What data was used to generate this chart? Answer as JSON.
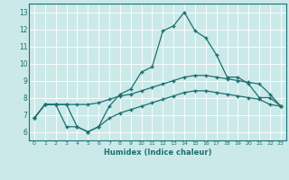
{
  "title": "",
  "xlabel": "Humidex (Indice chaleur)",
  "ylabel": "",
  "bg_color": "#cce9e9",
  "grid_color": "#ffffff",
  "line_color": "#1a7070",
  "xlim": [
    -0.5,
    23.5
  ],
  "ylim": [
    5.5,
    13.5
  ],
  "xticks": [
    0,
    1,
    2,
    3,
    4,
    5,
    6,
    7,
    8,
    9,
    10,
    11,
    12,
    13,
    14,
    15,
    16,
    17,
    18,
    19,
    20,
    21,
    22,
    23
  ],
  "yticks": [
    6,
    7,
    8,
    9,
    10,
    11,
    12,
    13
  ],
  "line1_x": [
    0,
    1,
    2,
    3,
    4,
    5,
    6,
    7,
    8,
    9,
    10,
    11,
    12,
    13,
    14,
    15,
    16,
    17,
    18,
    19,
    20,
    21,
    22,
    23
  ],
  "line1_y": [
    6.8,
    7.6,
    7.6,
    7.6,
    7.6,
    7.6,
    7.7,
    7.9,
    8.1,
    8.2,
    8.4,
    8.6,
    8.8,
    9.0,
    9.2,
    9.3,
    9.3,
    9.2,
    9.1,
    9.0,
    8.9,
    8.8,
    8.2,
    7.5
  ],
  "line2_x": [
    0,
    1,
    2,
    3,
    4,
    5,
    6,
    7,
    8,
    9,
    10,
    11,
    12,
    13,
    14,
    15,
    16,
    17,
    18,
    19,
    20,
    21,
    22,
    23
  ],
  "line2_y": [
    6.8,
    7.6,
    7.6,
    7.6,
    6.3,
    6.0,
    6.3,
    7.5,
    8.2,
    8.5,
    9.5,
    9.8,
    11.9,
    12.2,
    13.0,
    11.9,
    11.5,
    10.5,
    9.2,
    9.2,
    8.8,
    8.0,
    8.0,
    7.5
  ],
  "line3_x": [
    0,
    1,
    2,
    3,
    4,
    5,
    6,
    7,
    8,
    9,
    10,
    11,
    12,
    13,
    14,
    15,
    16,
    17,
    18,
    19,
    20,
    21,
    22,
    23
  ],
  "line3_y": [
    6.8,
    7.6,
    7.6,
    6.3,
    6.3,
    6.0,
    6.3,
    6.8,
    7.1,
    7.3,
    7.5,
    7.7,
    7.9,
    8.1,
    8.3,
    8.4,
    8.4,
    8.3,
    8.2,
    8.1,
    8.0,
    7.9,
    7.6,
    7.5
  ],
  "xlabel_fontsize": 6.0,
  "ytick_fontsize": 5.5,
  "xtick_fontsize": 4.5
}
